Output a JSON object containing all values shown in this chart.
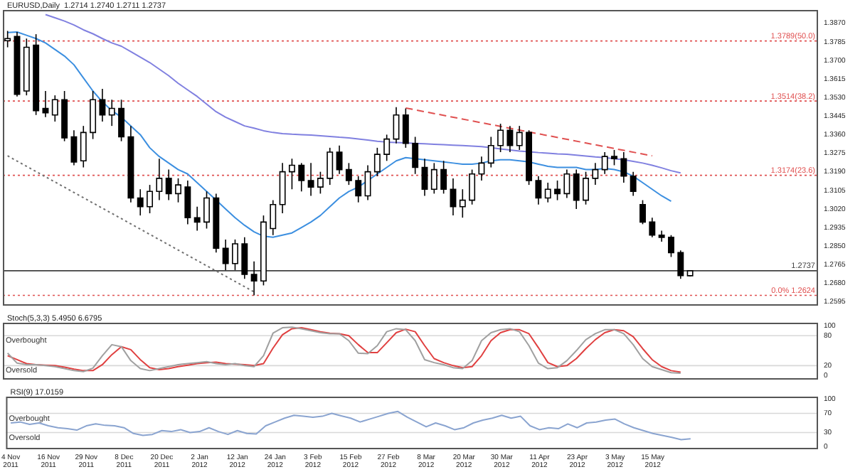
{
  "chart_data": [
    {
      "type": "candlestick",
      "title": "EURUSD,Daily  1.2714 1.2740 1.2711 1.2737",
      "tick_labels": "y",
      "categories": [
        null,
        null,
        null,
        null,
        null,
        null,
        null,
        null,
        null,
        null,
        null,
        null,
        null,
        null,
        null,
        null,
        null,
        null,
        null,
        null,
        null,
        null,
        null,
        null,
        null,
        null,
        null,
        null,
        null,
        null,
        null,
        null,
        null,
        null,
        null,
        null,
        null,
        null,
        null,
        null,
        null,
        null,
        null,
        null,
        null,
        null,
        null,
        null,
        null,
        null,
        null,
        null,
        null,
        null,
        null,
        null,
        null,
        null,
        null,
        null,
        null,
        null,
        null,
        null,
        null,
        null,
        null,
        null,
        null,
        null,
        null,
        null,
        null,
        null,
        null,
        null,
        null,
        null,
        null,
        null,
        null,
        null,
        null,
        null,
        null,
        null
      ],
      "ohlc": [
        [
          1.379,
          1.3835,
          1.376,
          1.38
        ],
        [
          1.381,
          1.383,
          1.3535,
          1.3545
        ],
        [
          1.356,
          1.38,
          1.354,
          1.376
        ],
        [
          1.377,
          1.382,
          1.345,
          1.347
        ],
        [
          1.348,
          1.356,
          1.344,
          1.346
        ],
        [
          1.345,
          1.354,
          1.342,
          1.352
        ],
        [
          1.352,
          1.356,
          1.333,
          1.3345
        ],
        [
          1.335,
          1.338,
          1.322,
          1.3235
        ],
        [
          1.324,
          1.34,
          1.321,
          1.337
        ],
        [
          1.337,
          1.356,
          1.334,
          1.352
        ],
        [
          1.352,
          1.357,
          1.342,
          1.345
        ],
        [
          1.345,
          1.352,
          1.34,
          1.348
        ],
        [
          1.348,
          1.352,
          1.333,
          1.335
        ],
        [
          1.335,
          1.34,
          1.305,
          1.307
        ],
        [
          1.307,
          1.311,
          1.299,
          1.303
        ],
        [
          1.303,
          1.313,
          1.3,
          1.31
        ],
        [
          1.31,
          1.325,
          1.306,
          1.316
        ],
        [
          1.316,
          1.32,
          1.306,
          1.309
        ],
        [
          1.309,
          1.316,
          1.305,
          1.313
        ],
        [
          1.312,
          1.315,
          1.295,
          1.298
        ],
        [
          1.298,
          1.303,
          1.292,
          1.296
        ],
        [
          1.296,
          1.31,
          1.293,
          1.307
        ],
        [
          1.307,
          1.309,
          1.282,
          1.284
        ],
        [
          1.284,
          1.288,
          1.274,
          1.277
        ],
        [
          1.277,
          1.288,
          1.274,
          1.286
        ],
        [
          1.286,
          1.289,
          1.27,
          1.272
        ],
        [
          1.272,
          1.278,
          1.2624,
          1.269
        ],
        [
          1.269,
          1.299,
          1.267,
          1.296
        ],
        [
          1.293,
          1.306,
          1.29,
          1.304
        ],
        [
          1.304,
          1.323,
          1.3,
          1.319
        ],
        [
          1.319,
          1.325,
          1.311,
          1.322
        ],
        [
          1.322,
          1.323,
          1.31,
          1.315
        ],
        [
          1.315,
          1.323,
          1.308,
          1.312
        ],
        [
          1.312,
          1.319,
          1.309,
          1.316
        ],
        [
          1.316,
          1.33,
          1.313,
          1.328
        ],
        [
          1.328,
          1.331,
          1.318,
          1.32
        ],
        [
          1.32,
          1.323,
          1.313,
          1.315
        ],
        [
          1.315,
          1.317,
          1.305,
          1.308
        ],
        [
          1.308,
          1.322,
          1.306,
          1.319
        ],
        [
          1.319,
          1.33,
          1.317,
          1.327
        ],
        [
          1.327,
          1.336,
          1.324,
          1.334
        ],
        [
          1.334,
          1.3486,
          1.332,
          1.345
        ],
        [
          1.345,
          1.348,
          1.33,
          1.332
        ],
        [
          1.332,
          1.335,
          1.318,
          1.321
        ],
        [
          1.321,
          1.325,
          1.308,
          1.311
        ],
        [
          1.311,
          1.323,
          1.309,
          1.32
        ],
        [
          1.32,
          1.324,
          1.309,
          1.311
        ],
        [
          1.311,
          1.316,
          1.299,
          1.303
        ],
        [
          1.303,
          1.311,
          1.298,
          1.306
        ],
        [
          1.306,
          1.32,
          1.304,
          1.318
        ],
        [
          1.318,
          1.326,
          1.315,
          1.323
        ],
        [
          1.323,
          1.335,
          1.321,
          1.331
        ],
        [
          1.331,
          1.341,
          1.328,
          1.338
        ],
        [
          1.338,
          1.34,
          1.328,
          1.331
        ],
        [
          1.331,
          1.34,
          1.329,
          1.337
        ],
        [
          1.337,
          1.338,
          1.313,
          1.315
        ],
        [
          1.315,
          1.317,
          1.304,
          1.307
        ],
        [
          1.307,
          1.314,
          1.305,
          1.311
        ],
        [
          1.311,
          1.315,
          1.306,
          1.309
        ],
        [
          1.309,
          1.32,
          1.307,
          1.318
        ],
        [
          1.318,
          1.32,
          1.302,
          1.306
        ],
        [
          1.306,
          1.319,
          1.304,
          1.316
        ],
        [
          1.316,
          1.323,
          1.313,
          1.32
        ],
        [
          1.32,
          1.328,
          1.318,
          1.326
        ],
        [
          1.326,
          1.329,
          1.322,
          1.325
        ],
        [
          1.325,
          1.328,
          1.314,
          1.317
        ],
        [
          1.317,
          1.319,
          1.308,
          1.31
        ],
        [
          1.304,
          1.306,
          1.295,
          1.296
        ],
        [
          1.296,
          1.298,
          1.289,
          1.29
        ],
        [
          1.29,
          1.292,
          1.287,
          1.289
        ],
        [
          1.289,
          1.29,
          1.28,
          1.282
        ],
        [
          1.282,
          1.283,
          1.27,
          1.2715
        ],
        [
          1.2714,
          1.274,
          1.2711,
          1.2737
        ],
        null,
        null,
        null,
        null,
        null,
        null,
        null,
        null,
        null,
        null,
        null,
        null,
        null
      ],
      "colors": [
        "#ffffff",
        "#000000",
        "#ffffff",
        "#000000",
        "#000000",
        "#ffffff",
        "#000000",
        "#000000",
        "#ffffff",
        "#ffffff",
        "#000000",
        "#ffffff",
        "#000000",
        "#000000",
        "#000000",
        "#ffffff",
        "#ffffff",
        "#000000",
        "#ffffff",
        "#000000",
        "#000000",
        "#ffffff",
        "#000000",
        "#000000",
        "#ffffff",
        "#000000",
        "#000000",
        "#ffffff",
        "#ffffff",
        "#ffffff",
        "#ffffff",
        "#000000",
        "#000000",
        "#ffffff",
        "#ffffff",
        "#000000",
        "#000000",
        "#000000",
        "#ffffff",
        "#ffffff",
        "#ffffff",
        "#ffffff",
        "#000000",
        "#000000",
        "#000000",
        "#ffffff",
        "#000000",
        "#000000",
        "#ffffff",
        "#ffffff",
        "#ffffff",
        "#ffffff",
        "#ffffff",
        "#000000",
        "#ffffff",
        "#000000",
        "#000000",
        "#ffffff",
        "#000000",
        "#ffffff",
        "#000000",
        "#ffffff",
        "#ffffff",
        "#ffffff",
        "#000000",
        "#000000",
        "#000000",
        "#000000",
        "#000000",
        "#000000",
        "#000000",
        "#000000",
        "#ffffff",
        null,
        null,
        null,
        null,
        null,
        null,
        null,
        null,
        null,
        null,
        null,
        null,
        null
      ],
      "series": [
        {
          "type": "line",
          "color": "#3c8fe0",
          "values": [
            1.3828,
            1.383,
            1.3815,
            1.38,
            1.378,
            1.375,
            1.372,
            1.368,
            1.362,
            1.356,
            1.351,
            1.347,
            1.344,
            1.34,
            1.336,
            1.33,
            1.326,
            1.323,
            1.32,
            1.318,
            1.314,
            1.31,
            1.306,
            1.302,
            1.298,
            1.2945,
            1.2915,
            1.2895,
            1.289,
            1.29,
            1.291,
            1.2935,
            1.296,
            1.299,
            1.303,
            1.307,
            1.31,
            1.312,
            1.315,
            1.318,
            1.321,
            1.324,
            1.3255,
            1.325,
            1.3245,
            1.324,
            1.3235,
            1.323,
            1.3225,
            1.3225,
            1.323,
            1.324,
            1.3245,
            1.3245,
            1.324,
            1.3235,
            1.3225,
            1.3215,
            1.321,
            1.321,
            1.321,
            1.32,
            1.32,
            1.3205,
            1.32,
            1.319,
            1.317,
            1.314,
            1.311,
            1.308,
            1.3055,
            null,
            null,
            null,
            null,
            null,
            null,
            null,
            null,
            null,
            null,
            null,
            null,
            null,
            null,
            null
          ]
        },
        {
          "type": "line",
          "color": "#8080e0",
          "values": [
            null,
            null,
            null,
            null,
            1.391,
            1.3895,
            1.388,
            1.3862,
            1.384,
            1.3822,
            1.38,
            1.378,
            1.3765,
            1.374,
            1.3715,
            1.369,
            1.366,
            1.363,
            1.3595,
            1.3565,
            1.3535,
            1.35,
            1.3465,
            1.344,
            1.342,
            1.34,
            1.339,
            1.3378,
            1.337,
            1.3365,
            1.3362,
            1.336,
            1.3358,
            1.3355,
            1.3352,
            1.3348,
            1.3345,
            1.334,
            1.3335,
            1.333,
            1.3326,
            1.3324,
            1.3322,
            1.332,
            1.3318,
            1.3316,
            1.3314,
            1.3312,
            1.331,
            1.3308,
            1.3305,
            1.33,
            1.3295,
            1.329,
            1.3285,
            1.3282,
            1.3278,
            1.3275,
            1.3272,
            1.327,
            1.3266,
            1.3262,
            1.3258,
            1.3255,
            1.325,
            1.3245,
            1.3238,
            1.323,
            1.322,
            1.3208,
            1.3195,
            1.3185,
            null,
            null,
            null,
            null,
            null,
            null,
            null,
            null,
            null,
            null,
            null,
            null,
            null,
            null
          ]
        },
        {
          "type": "line",
          "color": "#707070",
          "line_style": "dotted",
          "values": [
            1.3263,
            null,
            null,
            null,
            null,
            null,
            null,
            null,
            null,
            null,
            null,
            null,
            null,
            null,
            null,
            null,
            null,
            null,
            null,
            null,
            null,
            null,
            null,
            null,
            null,
            null,
            1.264,
            null,
            null,
            null,
            null,
            null,
            null,
            null,
            null,
            null,
            null,
            null,
            null,
            null,
            null,
            null,
            null,
            null,
            null,
            null,
            null,
            null,
            null,
            null,
            null,
            null,
            null,
            null,
            null,
            null,
            null,
            null,
            null,
            null,
            null,
            null,
            null,
            null,
            null,
            null,
            null,
            null,
            null,
            null,
            null,
            null,
            null,
            null,
            null,
            null,
            null,
            null,
            null,
            null,
            null,
            null,
            null,
            null,
            null,
            null
          ]
        },
        {
          "type": "line",
          "color": "#e05050",
          "line_style": "dashed",
          "values": [
            null,
            null,
            null,
            null,
            null,
            null,
            null,
            null,
            null,
            null,
            null,
            null,
            null,
            null,
            null,
            null,
            null,
            null,
            null,
            null,
            null,
            null,
            null,
            null,
            null,
            null,
            null,
            null,
            null,
            null,
            null,
            null,
            null,
            null,
            null,
            null,
            null,
            null,
            null,
            null,
            null,
            null,
            1.3482,
            null,
            null,
            null,
            null,
            null,
            null,
            null,
            null,
            null,
            null,
            null,
            null,
            null,
            null,
            null,
            null,
            null,
            null,
            null,
            null,
            null,
            null,
            null,
            null,
            null,
            1.3263,
            null,
            null,
            null,
            null,
            null,
            null,
            null,
            null,
            null,
            null,
            null,
            null,
            null,
            null,
            null,
            null,
            null
          ]
        }
      ],
      "ylim": [
        1.2577,
        1.3931
      ],
      "yticks": [
        {
          "value": 1.387,
          "label": "1.3870"
        },
        {
          "value": 1.3785,
          "label": "1.3785"
        },
        {
          "value": 1.37,
          "label": "1.3700"
        },
        {
          "value": 1.3615,
          "label": "1.3615"
        },
        {
          "value": 1.353,
          "label": "1.3530"
        },
        {
          "value": 1.3445,
          "label": "1.3445"
        },
        {
          "value": 1.336,
          "label": "1.3360"
        },
        {
          "value": 1.3275,
          "label": "1.3275"
        },
        {
          "value": 1.319,
          "label": "1.3190"
        },
        {
          "value": 1.3105,
          "label": "1.3105"
        },
        {
          "value": 1.302,
          "label": "1.3020"
        },
        {
          "value": 1.2935,
          "label": "1.2935"
        },
        {
          "value": 1.285,
          "label": "1.2850"
        },
        {
          "value": 1.2765,
          "label": "1.2765"
        },
        {
          "value": 1.268,
          "label": "1.2680"
        },
        {
          "value": 1.2595,
          "label": "1.2595"
        }
      ],
      "ref_lines": [
        {
          "axis": "y",
          "value": 1.3789,
          "label": "1.3789(50.0)",
          "color": "#e05050",
          "line_style": "dotted"
        },
        {
          "axis": "y",
          "value": 1.3514,
          "label": "1.3514(38.2)",
          "color": "#e05050",
          "line_style": "dotted"
        },
        {
          "axis": "y",
          "value": 1.3174,
          "label": "1.3174(23.6)",
          "color": "#e05050",
          "line_style": "dotted"
        },
        {
          "axis": "y",
          "value": 1.2624,
          "label": "0.0% 1.2624",
          "color": "#e05050",
          "line_style": "dotted"
        },
        {
          "axis": "y",
          "value": 1.2737,
          "label": "1.2737",
          "color": "#404040",
          "line_style": "solid"
        }
      ]
    },
    {
      "type": "line",
      "title": "Stoch(5,3,3) 5.4950 6.6795",
      "tick_labels": "y",
      "categories": [
        null,
        null,
        null,
        null,
        null,
        null,
        null,
        null,
        null,
        null,
        null,
        null,
        null,
        null,
        null,
        null,
        null,
        null,
        null,
        null,
        null,
        null,
        null,
        null,
        null,
        null,
        null,
        null,
        null,
        null,
        null,
        null,
        null,
        null,
        null,
        null,
        null,
        null,
        null,
        null,
        null,
        null,
        null,
        null,
        null,
        null,
        null,
        null,
        null,
        null,
        null,
        null,
        null,
        null,
        null,
        null,
        null,
        null,
        null,
        null,
        null,
        null,
        null,
        null,
        null,
        null,
        null,
        null,
        null,
        null,
        null,
        null,
        null,
        null,
        null,
        null,
        null,
        null,
        null,
        null,
        null,
        null,
        null,
        null,
        null,
        null
      ],
      "series": [
        {
          "color": "#a0a0a0",
          "values": [
            45,
            25,
            22,
            22,
            20,
            18,
            14,
            10,
            8,
            15,
            40,
            62,
            58,
            30,
            14,
            10,
            14,
            18,
            22,
            24,
            26,
            28,
            24,
            22,
            24,
            20,
            18,
            40,
            85,
            96,
            97,
            94,
            90,
            86,
            84,
            84,
            70,
            45,
            44,
            60,
            88,
            94,
            92,
            70,
            32,
            26,
            22,
            16,
            14,
            30,
            70,
            86,
            92,
            94,
            88,
            60,
            25,
            14,
            16,
            30,
            50,
            72,
            84,
            92,
            92,
            84,
            62,
            34,
            18,
            12,
            6,
            5,
            null,
            null,
            null,
            null,
            null,
            null,
            null,
            null,
            null,
            null,
            null,
            null,
            null,
            null
          ]
        },
        {
          "color": "#e04040",
          "values": [
            40,
            32,
            24,
            22,
            21,
            20,
            17,
            13,
            10,
            10,
            22,
            42,
            58,
            52,
            32,
            16,
            12,
            14,
            18,
            21,
            24,
            26,
            27,
            24,
            23,
            22,
            20,
            24,
            55,
            82,
            94,
            96,
            92,
            88,
            85,
            84,
            80,
            62,
            46,
            46,
            66,
            86,
            93,
            88,
            60,
            34,
            26,
            20,
            16,
            18,
            40,
            70,
            86,
            92,
            92,
            84,
            56,
            26,
            18,
            20,
            34,
            54,
            72,
            86,
            92,
            90,
            78,
            54,
            32,
            18,
            10,
            7,
            null,
            null,
            null,
            null,
            null,
            null,
            null,
            null,
            null,
            null,
            null,
            null,
            null,
            null
          ]
        }
      ],
      "ylim": [
        -8,
        106
      ],
      "yticks": [
        0,
        20,
        80,
        100
      ],
      "ref_lines": [
        {
          "axis": "y",
          "value": 80,
          "label": "Overbought",
          "color": "#d8d8d8",
          "line_style": "solid"
        },
        {
          "axis": "y",
          "value": 20,
          "label": "Oversold",
          "color": "#d8d8d8",
          "line_style": "solid"
        }
      ]
    },
    {
      "type": "line",
      "title": "RSI(9) 17.0159",
      "categories": [
        "4 Nov 2011",
        null,
        null,
        null,
        "16 Nov 2011",
        null,
        null,
        null,
        "29 Nov 2011",
        null,
        null,
        null,
        "8 Dec 2011",
        null,
        null,
        null,
        "20 Dec 2011",
        null,
        null,
        null,
        "2 Jan 2012",
        null,
        null,
        null,
        "12 Jan 2012",
        null,
        null,
        null,
        "24 Jan 2012",
        null,
        null,
        null,
        "3 Feb 2012",
        null,
        null,
        null,
        "15 Feb 2012",
        null,
        null,
        null,
        "27 Feb 2012",
        null,
        null,
        null,
        "8 Mar 2012",
        null,
        null,
        null,
        "20 Mar 2012",
        null,
        null,
        null,
        "30 Mar 2012",
        null,
        null,
        null,
        "11 Apr 2012",
        null,
        null,
        null,
        "23 Apr 2012",
        null,
        null,
        null,
        "3 May 2012",
        null,
        null,
        null,
        "15 May 2012",
        null,
        null,
        null,
        null,
        null,
        null,
        null,
        null,
        null,
        null,
        null,
        null,
        null,
        null,
        null,
        null,
        null
      ],
      "series": [
        {
          "color": "#8aa4d0",
          "values": [
            50,
            52,
            47,
            50,
            44,
            40,
            38,
            35,
            44,
            48,
            45,
            44,
            40,
            28,
            24,
            26,
            34,
            32,
            36,
            30,
            32,
            40,
            32,
            26,
            34,
            28,
            27,
            44,
            52,
            60,
            66,
            64,
            62,
            64,
            70,
            65,
            60,
            52,
            58,
            64,
            70,
            74,
            62,
            52,
            42,
            50,
            44,
            36,
            40,
            50,
            56,
            60,
            66,
            60,
            64,
            44,
            36,
            40,
            38,
            48,
            40,
            50,
            52,
            56,
            58,
            48,
            40,
            34,
            28,
            24,
            20,
            15,
            17,
            null,
            null,
            null,
            null,
            null,
            null,
            null,
            null,
            null,
            null,
            null,
            null,
            null
          ]
        }
      ],
      "ylim": [
        -5,
        105
      ],
      "yticks": [
        0,
        30,
        70,
        100
      ],
      "ref_lines": [
        {
          "axis": "y",
          "value": 70,
          "label": "Overbought",
          "color": "#d8d8d8",
          "line_style": "solid"
        },
        {
          "axis": "y",
          "value": 30,
          "label": "Oversold",
          "color": "#d8d8d8",
          "line_style": "solid"
        }
      ]
    }
  ]
}
